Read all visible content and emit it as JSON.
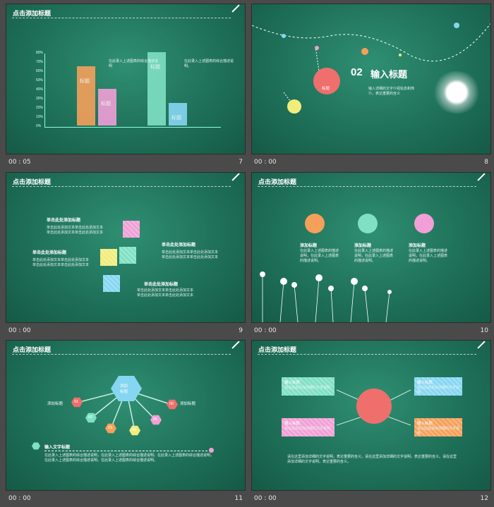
{
  "slides": [
    {
      "title": "点击添加标题",
      "time": "00 : 05",
      "number": "7",
      "chart_data": {
        "type": "bar",
        "categories": [
          "标题",
          "标题",
          "标题",
          "标题"
        ],
        "values": [
          65,
          40,
          80,
          25
        ],
        "ylim": [
          0,
          80
        ],
        "yticks": [
          "0%",
          "10%",
          "20%",
          "30%",
          "40%",
          "50%",
          "60%",
          "70%",
          "80%"
        ]
      },
      "note1": "在此录入上述图表的综合描述说明",
      "note2": "在此录入上述图表的综合描述说明。"
    },
    {
      "title": "",
      "time": "00 : 00",
      "number": "8",
      "heading_num": "02",
      "heading": "输入标题",
      "circle_label": "标题",
      "desc": "输入详细的文字介绍信息和简介，表达重要的含义"
    },
    {
      "title": "点击添加标题",
      "time": "00 : 00",
      "number": "9",
      "items": [
        {
          "head": "单击此处添加标题",
          "body": "单击此处添加文本单击此处添加文本\n单击此处添加文本单击此处添加文本"
        },
        {
          "head": "单击此处添加标题",
          "body": "单击此处添加文本单击此处添加文本\n单击此处添加文本单击此处添加文本"
        },
        {
          "head": "单击此处添加标题",
          "body": "单击此处添加文本单击此处添加文本\n单击此处添加文本单击此处添加文本"
        },
        {
          "head": "单击此处添加标题",
          "body": "单击此处添加文本单击此处添加文本\n单击此处添加文本单击此处添加文本"
        }
      ]
    },
    {
      "title": "点击添加标题",
      "time": "00 : 00",
      "number": "10",
      "circles": [
        {
          "pct": "",
          "head": "添加标题",
          "body": "在此录入上述图表的描述说明，在此录入上述图表的描述说明。"
        },
        {
          "pct": "",
          "head": "添加标题",
          "body": "在此录入上述图表的描述说明，在此录入上述图表的描述说明。"
        },
        {
          "pct": "",
          "head": "添加标题",
          "body": "在此录入上述图表的描述说明，在此录入上述图表的描述说明。"
        }
      ]
    },
    {
      "title": "点击添加标题",
      "time": "00 : 00",
      "number": "11",
      "center": "添加\n标题",
      "nodes": [
        "01",
        "02",
        "03",
        "04",
        "05",
        "06"
      ],
      "node_label": "添加标题",
      "sub_head": "输入文字标题",
      "body": "在此录入上述图表的综合描述说明，在此录入上述图表的综合描述说明。在此录入上述图表的综合描述说明，在此录入上述图表的综合描述说明。在此录入上述图表的综合描述说明。"
    },
    {
      "title": "点击添加标题",
      "time": "00 : 00",
      "number": "12",
      "cards": [
        {
          "head": "输入标题",
          "body": "请在此处添加详细的文字说明"
        },
        {
          "head": "输入标题",
          "body": "请在此处添加详细的文字说明"
        },
        {
          "head": "输入标题",
          "body": "请在此处添加详细的文字说明"
        },
        {
          "head": "输入标题",
          "body": "请在此处添加详细的文字说明"
        }
      ],
      "bottom": "请在这里添加详细的文字说明，表达重要的含义。请在这里添加详细的文字说明，表达重要的含义。请在这里添加详细的文字说明，表达重要的含义。"
    }
  ],
  "colors": {
    "orange": "#f5a05a",
    "pink": "#f19fd6",
    "mint": "#7fe0c4",
    "blue": "#86d6f2",
    "yellow": "#f2ec7c",
    "coral": "#ef6f6c"
  }
}
